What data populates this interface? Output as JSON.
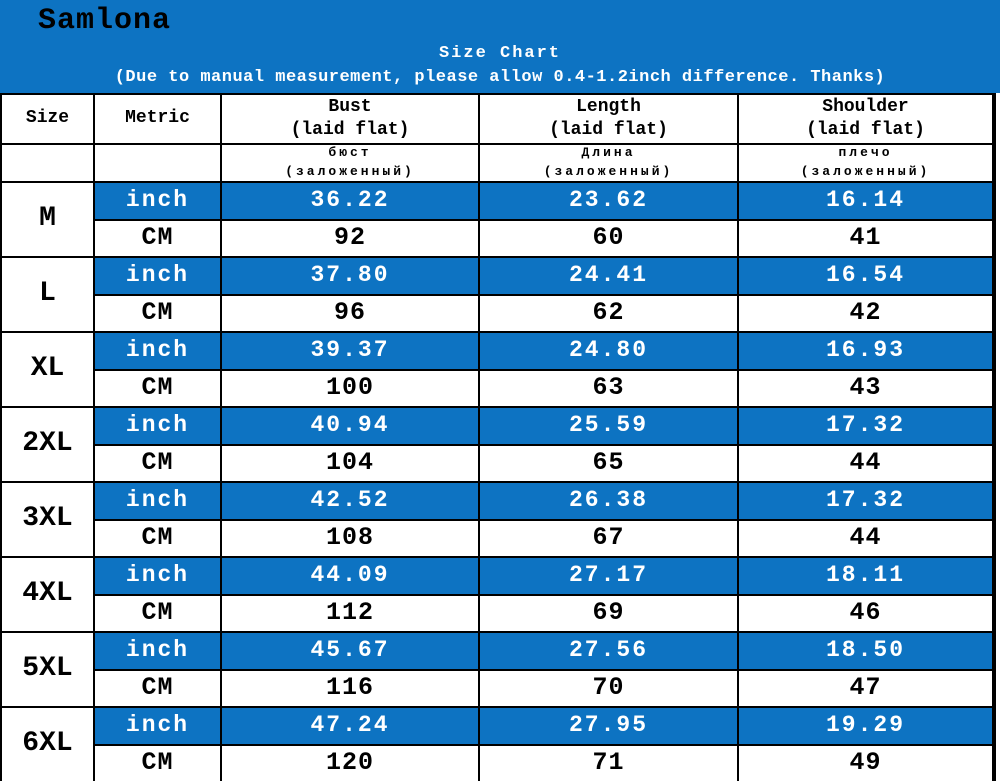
{
  "banner": {
    "brand": "Samlona",
    "title": "Size Chart",
    "subtitle": "(Due to manual measurement, please allow 0.4-1.2inch difference. Thanks)"
  },
  "colors": {
    "blue": "#0d73c2",
    "border": "#000000",
    "banner_text": "#ffffff",
    "brand_text": "#000000"
  },
  "table": {
    "header": {
      "size": "Size",
      "metric": "Metric",
      "measures": [
        {
          "en": "Bust",
          "en_sub": "(laid flat)",
          "ru": "бюст",
          "ru_sub": "(заложенный)"
        },
        {
          "en": "Length",
          "en_sub": "(laid flat)",
          "ru": "Длина",
          "ru_sub": "(заложенный)"
        },
        {
          "en": "Shoulder",
          "en_sub": "(laid flat)",
          "ru": "плечо",
          "ru_sub": "(заложенный)"
        }
      ]
    },
    "units": {
      "inch": "inch",
      "cm": "CM"
    },
    "rows": [
      {
        "size": "M",
        "inch": [
          "36.22",
          "23.62",
          "16.14"
        ],
        "cm": [
          "92",
          "60",
          "41"
        ]
      },
      {
        "size": "L",
        "inch": [
          "37.80",
          "24.41",
          "16.54"
        ],
        "cm": [
          "96",
          "62",
          "42"
        ]
      },
      {
        "size": "XL",
        "inch": [
          "39.37",
          "24.80",
          "16.93"
        ],
        "cm": [
          "100",
          "63",
          "43"
        ]
      },
      {
        "size": "2XL",
        "inch": [
          "40.94",
          "25.59",
          "17.32"
        ],
        "cm": [
          "104",
          "65",
          "44"
        ]
      },
      {
        "size": "3XL",
        "inch": [
          "42.52",
          "26.38",
          "17.32"
        ],
        "cm": [
          "108",
          "67",
          "44"
        ]
      },
      {
        "size": "4XL",
        "inch": [
          "44.09",
          "27.17",
          "18.11"
        ],
        "cm": [
          "112",
          "69",
          "46"
        ]
      },
      {
        "size": "5XL",
        "inch": [
          "45.67",
          "27.56",
          "18.50"
        ],
        "cm": [
          "116",
          "70",
          "47"
        ]
      },
      {
        "size": "6XL",
        "inch": [
          "47.24",
          "27.95",
          "19.29"
        ],
        "cm": [
          "120",
          "71",
          "49"
        ]
      }
    ]
  },
  "chart_data": {
    "type": "table",
    "title": "Size Chart",
    "subtitle": "(Due to manual measurement, please allow 0.4-1.2inch difference. Thanks)",
    "columns": [
      "Size",
      "Metric",
      "Bust (laid flat) / бюст (заложенный)",
      "Length (laid flat) / Длина (заложенный)",
      "Shoulder (laid flat) / плечо (заложенный)"
    ],
    "rows": [
      [
        "M",
        "inch",
        36.22,
        23.62,
        16.14
      ],
      [
        "M",
        "CM",
        92,
        60,
        41
      ],
      [
        "L",
        "inch",
        37.8,
        24.41,
        16.54
      ],
      [
        "L",
        "CM",
        96,
        62,
        42
      ],
      [
        "XL",
        "inch",
        39.37,
        24.8,
        16.93
      ],
      [
        "XL",
        "CM",
        100,
        63,
        43
      ],
      [
        "2XL",
        "inch",
        40.94,
        25.59,
        17.32
      ],
      [
        "2XL",
        "CM",
        104,
        65,
        44
      ],
      [
        "3XL",
        "inch",
        42.52,
        26.38,
        17.32
      ],
      [
        "3XL",
        "CM",
        108,
        67,
        44
      ],
      [
        "4XL",
        "inch",
        44.09,
        27.17,
        18.11
      ],
      [
        "4XL",
        "CM",
        112,
        69,
        46
      ],
      [
        "5XL",
        "inch",
        45.67,
        27.56,
        18.5
      ],
      [
        "5XL",
        "CM",
        116,
        70,
        47
      ],
      [
        "6XL",
        "inch",
        47.24,
        27.95,
        19.29
      ],
      [
        "6XL",
        "CM",
        120,
        71,
        49
      ]
    ]
  }
}
